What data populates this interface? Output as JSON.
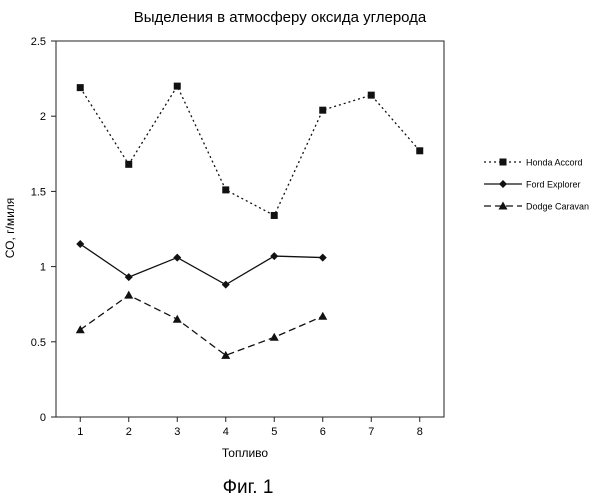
{
  "chart_data": {
    "type": "line",
    "title": "Выделения в атмосферу оксида углерода",
    "caption": "Фиг. 1",
    "xlabel": "Топливо",
    "ylabel": "СО, г/миля",
    "x": [
      1,
      2,
      3,
      4,
      5,
      6,
      7,
      8
    ],
    "xlim": [
      0.5,
      8.5
    ],
    "ylim": [
      0,
      2.5
    ],
    "yticks": [
      0,
      0.5,
      1,
      1.5,
      2,
      2.5
    ],
    "ytick_labels": [
      "0",
      "0.5",
      "1",
      "1.5",
      "2",
      "2.5"
    ],
    "xtick_labels": [
      "1",
      "2",
      "3",
      "4",
      "5",
      "6",
      "7",
      "8"
    ],
    "grid": false,
    "legend_position": "right",
    "series": [
      {
        "name": "Honda Accord",
        "line": "dotted",
        "marker": "square",
        "color": "#111111",
        "x": [
          1,
          2,
          3,
          4,
          5,
          6,
          7,
          8
        ],
        "values": [
          2.19,
          1.68,
          2.2,
          1.51,
          1.34,
          2.04,
          2.14,
          1.77
        ]
      },
      {
        "name": "Ford Explorer",
        "line": "solid",
        "marker": "diamond",
        "color": "#111111",
        "x": [
          1,
          2,
          3,
          4,
          5,
          6
        ],
        "values": [
          1.15,
          0.93,
          1.06,
          0.88,
          1.07,
          1.06
        ]
      },
      {
        "name": "Dodge Caravan",
        "line": "dashed",
        "marker": "triangle",
        "color": "#111111",
        "x": [
          1,
          2,
          3,
          4,
          5,
          6
        ],
        "values": [
          0.58,
          0.81,
          0.65,
          0.41,
          0.53,
          0.67
        ]
      }
    ]
  }
}
